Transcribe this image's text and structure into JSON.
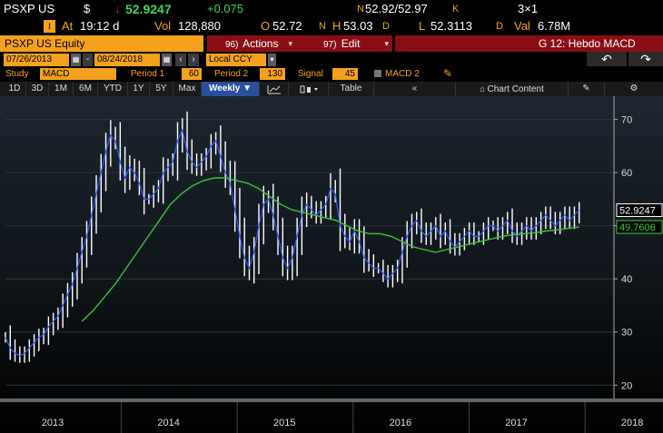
{
  "quote": {
    "ticker": "PSXP US",
    "currency": "$",
    "arrow": "↓",
    "last": "52.9247",
    "change": "+0.075",
    "bidask_label": "N",
    "bidask": "52.92/52.97",
    "bidask_suffix": "K",
    "size": "3×1",
    "time_label": "At",
    "time": "19:12 d",
    "vol_label": "Vol",
    "volume": "128,880",
    "open_label": "O",
    "open": "52.72",
    "open_suffix": "N",
    "high_label": "H",
    "high": "53.03",
    "high_suffix": "D",
    "low_label": "L",
    "low": "52.3113",
    "low_suffix": "D",
    "val_label": "Val",
    "value": "6.78M"
  },
  "command": {
    "security": "PSXP US Equity",
    "actions_num": "96)",
    "actions_label": "Actions",
    "edit_num": "97)",
    "edit_label": "Edit",
    "title": "G 12: Hebdo MACD",
    "start_date": "07/26/2013",
    "end_date": "08/24/2018",
    "currency": "Local CCY",
    "back_icon": "↶",
    "forward_icon": "↷"
  },
  "study": {
    "study_label": "Study",
    "study_value": "MACD",
    "period1_label": "Period 1",
    "period1": "60",
    "period2_label": "Period 2",
    "period2": "130",
    "signal_label": "Signal",
    "signal": "45",
    "macd2_label": "MACD 2"
  },
  "toolbar": {
    "ranges": [
      "1D",
      "3D",
      "1M",
      "6M",
      "YTD",
      "1Y",
      "5Y",
      "Max"
    ],
    "frequency": "Weekly ▼",
    "table_label": "Table",
    "chart_content_label": "Chart Content"
  },
  "colors": {
    "amber": "#f4a11d",
    "price_up": "#ffffff",
    "price_line": "#2e5bff",
    "ma_line": "#3ac43a",
    "last_tag": "#ffffff",
    "ma_tag": "#36d436",
    "background_top": "#1d2530",
    "background_bottom": "#000000"
  },
  "chart_data": {
    "type": "line",
    "title": "",
    "xlabel": "",
    "ylabel": "",
    "ylim": [
      18,
      73
    ],
    "yticks": [
      20,
      30,
      40,
      50,
      60,
      70
    ],
    "x_labels": [
      "2013",
      "2014",
      "2015",
      "2016",
      "2017",
      "2018"
    ],
    "x_label_positions": [
      0.3,
      1.3,
      2.3,
      3.3,
      4.3,
      5.3
    ],
    "last_price_tag": "52.9247",
    "ma_tag": "49.7606",
    "series": [
      {
        "kind": "price",
        "values": [
          29,
          27,
          26,
          25.5,
          26,
          27,
          28,
          29,
          29.5,
          31,
          32,
          33,
          35,
          37,
          39,
          42,
          45,
          48,
          52,
          56,
          60,
          64,
          67,
          66,
          62,
          59,
          61,
          60,
          58,
          55,
          55,
          56,
          57,
          60,
          61,
          62,
          66,
          68,
          64,
          62,
          61,
          62,
          63,
          65,
          66,
          63,
          60,
          58,
          53,
          48,
          44,
          42,
          45,
          50,
          54,
          55,
          52,
          48,
          44,
          42,
          44,
          48,
          52,
          54,
          53,
          52,
          53,
          54,
          57,
          56,
          50,
          48,
          47,
          49,
          47,
          44,
          43,
          42,
          42,
          41,
          40,
          41,
          42,
          45,
          48,
          50,
          51,
          49,
          48,
          49,
          50,
          48,
          49,
          47,
          46,
          47,
          48,
          49,
          48,
          48,
          49,
          50,
          50,
          49,
          50,
          51,
          49,
          48,
          49,
          50,
          49,
          50,
          51,
          52,
          51,
          50,
          51,
          52,
          51,
          52,
          52.9
        ]
      },
      {
        "kind": "moving_average",
        "values": [
          32,
          34,
          36.5,
          39,
          42,
          45,
          48,
          51,
          54,
          56,
          57.5,
          58.5,
          59,
          59,
          58.5,
          58,
          57,
          55.5,
          54,
          53,
          52.5,
          52,
          51.5,
          51,
          50,
          49,
          48.5,
          48.5,
          48,
          47,
          46,
          45.5,
          45,
          45.5,
          46,
          46.5,
          47,
          47.5,
          48,
          48.3,
          48.5,
          48.7,
          49,
          49.2,
          49.5,
          49.76
        ]
      }
    ]
  }
}
